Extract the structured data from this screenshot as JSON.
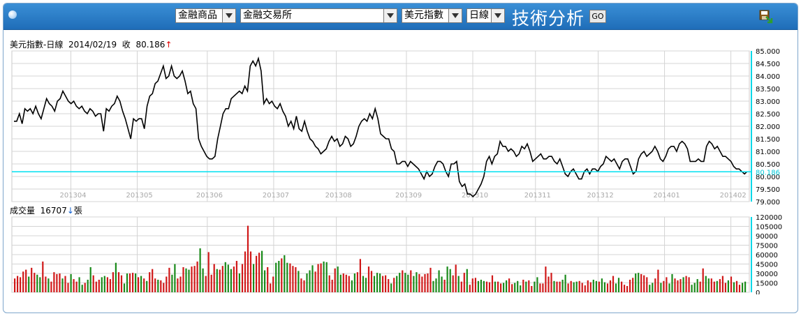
{
  "toolbar": {
    "category": "金融商品",
    "exchange": "金融交易所",
    "symbol": "美元指數",
    "period": "日線",
    "title": "技術分析",
    "go_label": "GO"
  },
  "price_info": {
    "name": "美元指數-日線",
    "date": "2014/02/19",
    "close_label": "收",
    "close": "80.186",
    "direction": "↑"
  },
  "volume_info": {
    "label": "成交量",
    "value": "16707",
    "direction": "↓",
    "unit": "張"
  },
  "chart_data": [
    {
      "type": "line",
      "series_name": "美元指數-日線",
      "y_ticks": [
        "85.000",
        "84.500",
        "84.000",
        "83.500",
        "83.000",
        "82.500",
        "82.000",
        "81.500",
        "81.000",
        "80.500",
        "80.000",
        "79.500",
        "79.000"
      ],
      "ylim": [
        79.0,
        85.0
      ],
      "current_value": 80.186,
      "current_label": "80.186",
      "x_tick_labels": [
        "201304",
        "201305",
        "201306",
        "201307",
        "201308",
        "201309",
        "201310",
        "201311",
        "201312",
        "201401",
        "201402"
      ],
      "grid": true,
      "values": [
        82.2,
        82.2,
        82.5,
        82.1,
        82.7,
        82.6,
        82.7,
        82.5,
        82.8,
        82.5,
        82.3,
        82.7,
        83.1,
        82.9,
        82.8,
        82.6,
        83.0,
        83.1,
        83.4,
        83.2,
        83.0,
        82.9,
        83.0,
        82.8,
        82.7,
        82.8,
        82.6,
        82.5,
        82.7,
        82.6,
        82.4,
        82.5,
        82.5,
        81.8,
        82.7,
        82.6,
        82.8,
        82.9,
        83.2,
        83.0,
        82.6,
        82.3,
        81.9,
        81.5,
        82.3,
        82.2,
        82.3,
        82.3,
        81.9,
        82.8,
        83.2,
        83.3,
        83.7,
        83.8,
        84.1,
        84.4,
        83.9,
        84.0,
        84.4,
        84.0,
        83.9,
        84.0,
        84.2,
        83.8,
        83.3,
        83.4,
        82.9,
        82.7,
        81.5,
        81.2,
        81.0,
        80.8,
        80.7,
        80.7,
        80.8,
        81.5,
        82.0,
        82.5,
        82.7,
        82.7,
        83.1,
        83.2,
        83.3,
        83.4,
        83.3,
        83.6,
        83.4,
        84.4,
        84.6,
        84.4,
        84.7,
        84.2,
        82.9,
        83.1,
        82.9,
        83.0,
        82.8,
        82.7,
        82.9,
        82.6,
        82.4,
        82.0,
        82.2,
        81.9,
        82.4,
        81.9,
        81.8,
        82.2,
        81.8,
        81.5,
        81.4,
        81.2,
        81.1,
        80.9,
        81.0,
        81.1,
        81.4,
        81.6,
        81.4,
        81.5,
        81.2,
        81.3,
        81.6,
        81.5,
        81.2,
        81.3,
        81.6,
        82.0,
        82.2,
        82.3,
        82.2,
        82.5,
        82.3,
        82.7,
        82.3,
        81.7,
        81.6,
        81.5,
        81.5,
        81.1,
        81.0,
        80.5,
        80.5,
        80.6,
        80.6,
        80.4,
        80.6,
        80.5,
        80.4,
        80.3,
        80.1,
        79.9,
        80.2,
        80.0,
        80.1,
        80.4,
        80.6,
        80.6,
        80.5,
        80.2,
        80.0,
        80.5,
        80.5,
        80.6,
        79.8,
        79.6,
        79.7,
        79.3,
        79.3,
        79.2,
        79.3,
        79.5,
        79.7,
        80.0,
        80.6,
        80.8,
        80.5,
        80.8,
        80.9,
        81.4,
        81.2,
        81.2,
        81.0,
        81.1,
        81.0,
        80.8,
        80.9,
        81.2,
        81.1,
        81.3,
        81.0,
        80.6,
        80.7,
        80.8,
        80.9,
        80.7,
        80.7,
        80.8,
        80.8,
        80.6,
        80.5,
        80.7,
        80.4,
        80.1,
        80.0,
        80.2,
        80.3,
        80.1,
        79.9,
        79.9,
        80.2,
        80.3,
        80.1,
        80.3,
        80.3,
        80.2,
        80.4,
        80.5,
        80.8,
        80.7,
        80.6,
        80.7,
        80.5,
        80.3,
        80.6,
        80.7,
        80.7,
        80.4,
        80.1,
        80.2,
        80.7,
        80.9,
        81.0,
        80.8,
        80.9,
        81.0,
        81.2,
        81.0,
        80.7,
        80.6,
        80.8,
        81.1,
        81.2,
        81.2,
        81.0,
        81.3,
        81.4,
        81.3,
        81.1,
        80.6,
        80.6,
        80.6,
        80.7,
        80.6,
        80.6,
        81.2,
        81.4,
        81.3,
        81.1,
        81.2,
        81.0,
        80.8,
        80.8,
        80.7,
        80.6,
        80.4,
        80.3,
        80.3,
        80.2,
        80.1,
        80.2
      ]
    },
    {
      "type": "bar",
      "series_name": "成交量",
      "y_ticks": [
        "120000",
        "105000",
        "90000",
        "75000",
        "60000",
        "45000",
        "30000",
        "15000",
        "0"
      ],
      "ylim": [
        0,
        120000
      ],
      "x_tick_labels": [
        "201304",
        "201305",
        "201306",
        "201307",
        "201308",
        "201309",
        "201310",
        "201311",
        "201312",
        "201401",
        "201402"
      ],
      "grid": true,
      "up_color": "#d01818",
      "down_color": "#1a8a1a",
      "values": [
        22000,
        26000,
        24000,
        33000,
        36000,
        25000,
        39000,
        31000,
        28000,
        24000,
        49000,
        25000,
        22000,
        17000,
        32000,
        29000,
        30000,
        22000,
        26000,
        15000,
        29000,
        21000,
        17000,
        24000,
        12000,
        15000,
        20000,
        40000,
        27000,
        17000,
        20000,
        24000,
        26000,
        24000,
        21000,
        32000,
        47000,
        32000,
        27000,
        14000,
        30000,
        30000,
        31000,
        30000,
        24000,
        26000,
        22000,
        18000,
        32000,
        37000,
        22000,
        20000,
        19000,
        15000,
        25000,
        39000,
        28000,
        45000,
        22000,
        25000,
        40000,
        38000,
        36000,
        41000,
        42000,
        49000,
        70000,
        38000,
        26000,
        64000,
        28000,
        45000,
        37000,
        36000,
        42000,
        48000,
        44000,
        37000,
        41000,
        50000,
        30000,
        45000,
        65000,
        106000,
        65000,
        45000,
        58000,
        63000,
        66000,
        35000,
        40000,
        14000,
        25000,
        47000,
        50000,
        54000,
        59000,
        47000,
        46000,
        42000,
        40000,
        34000,
        22000,
        19000,
        30000,
        35000,
        43000,
        33000,
        45000,
        46000,
        49000,
        48000,
        27000,
        20000,
        38000,
        41000,
        28000,
        30000,
        28000,
        26000,
        19000,
        30000,
        32000,
        53000,
        26000,
        23000,
        41000,
        34000,
        26000,
        31000,
        30000,
        26000,
        27000,
        21000,
        14000,
        23000,
        26000,
        31000,
        35000,
        31000,
        28000,
        35000,
        26000,
        32000,
        29000,
        25000,
        29000,
        30000,
        39000,
        18000,
        22000,
        35000,
        25000,
        20000,
        41000,
        37000,
        27000,
        44000,
        26000,
        17000,
        31000,
        37000,
        12000,
        22000,
        23000,
        18000,
        20000,
        18000,
        17000,
        16000,
        27000,
        17000,
        17000,
        14000,
        15000,
        19000,
        22000,
        13000,
        15000,
        18000,
        11000,
        20000,
        17000,
        19000,
        10000,
        17000,
        24000,
        14000,
        14000,
        41000,
        25000,
        31000,
        18000,
        17000,
        17000,
        20000,
        28000,
        14000,
        18000,
        16000,
        17000,
        18000,
        15000,
        11000,
        19000,
        16000,
        20000,
        18000,
        17000,
        22000,
        16000,
        14000,
        19000,
        26000,
        14000,
        23000,
        17000,
        12000,
        10000,
        20000,
        23000,
        30000,
        31000,
        29000,
        27000,
        24000,
        12000,
        15000,
        22000,
        36000,
        15000,
        18000,
        24000,
        14000,
        29000,
        22000,
        19000,
        21000,
        24000,
        26000,
        24000,
        12000,
        15000,
        21000,
        17000,
        38000,
        26000,
        22000,
        22000,
        17000,
        18000,
        21000,
        26000,
        15000,
        19000,
        25000,
        16000,
        18000,
        12000,
        15000,
        17000
      ],
      "directions": "uuuuuduudduuduuuuduuduuddudduuudduuuduudduudududuuuduuuudduuudduuudduuuuduuddduuduuuuduudduuuddudduuuduuddduuudduuudduuudduudduuddduuududduddudduuuuuddddudduuduuduuuddduuuduudduuddduduudduuuuuduudduudduuuuuddudduuudduuuuudduuudduuduudduuuduuddduudduuduuududuudduudduudduuudduuudduuuduuuduuddd"
    }
  ]
}
